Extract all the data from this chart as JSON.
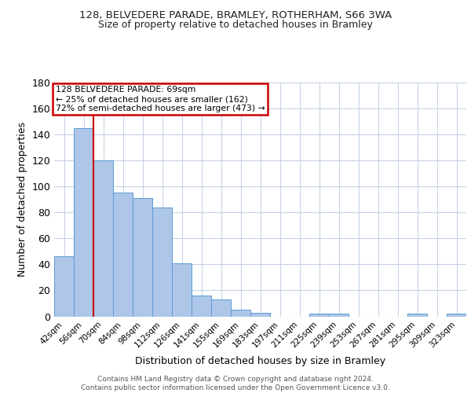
{
  "title1": "128, BELVEDERE PARADE, BRAMLEY, ROTHERHAM, S66 3WA",
  "title2": "Size of property relative to detached houses in Bramley",
  "xlabel": "Distribution of detached houses by size in Bramley",
  "ylabel": "Number of detached properties",
  "footer": "Contains HM Land Registry data © Crown copyright and database right 2024.\nContains public sector information licensed under the Open Government Licence v3.0.",
  "annotation_line1": "128 BELVEDERE PARADE: 69sqm",
  "annotation_line2": "← 25% of detached houses are smaller (162)",
  "annotation_line3": "72% of semi-detached houses are larger (473) →",
  "property_size_sqm": 69,
  "bar_labels": [
    "42sqm",
    "56sqm",
    "70sqm",
    "84sqm",
    "98sqm",
    "112sqm",
    "126sqm",
    "141sqm",
    "155sqm",
    "169sqm",
    "183sqm",
    "197sqm",
    "211sqm",
    "225sqm",
    "239sqm",
    "253sqm",
    "267sqm",
    "281sqm",
    "295sqm",
    "309sqm",
    "323sqm"
  ],
  "bar_values": [
    46,
    145,
    120,
    95,
    91,
    84,
    41,
    16,
    13,
    5,
    3,
    0,
    0,
    2,
    2,
    0,
    0,
    0,
    2,
    0,
    2
  ],
  "bar_width": 1.0,
  "bar_color": "#aec6e8",
  "bar_edge_color": "#5b9bd5",
  "vline_color": "#cc0000",
  "annotation_box_color": "#cc0000",
  "background_color": "#ffffff",
  "grid_color": "#c8d4e8",
  "ylim": [
    0,
    180
  ],
  "yticks": [
    0,
    20,
    40,
    60,
    80,
    100,
    120,
    140,
    160,
    180
  ]
}
